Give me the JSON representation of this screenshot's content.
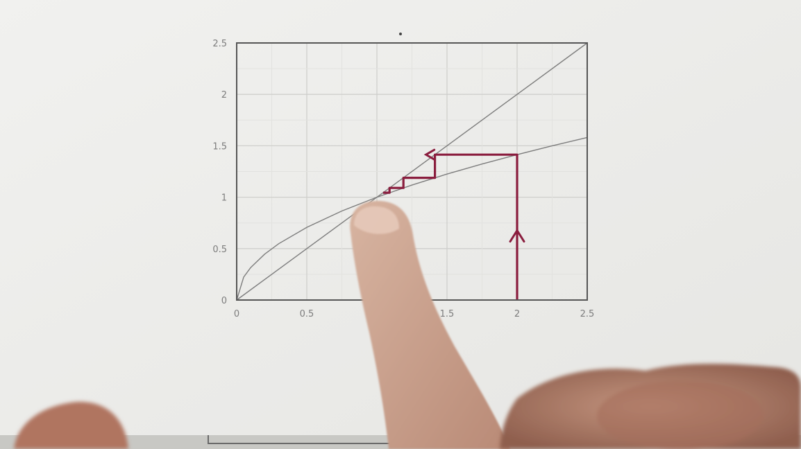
{
  "photo": {
    "subject": "hand-pointing",
    "paper_color": "#eeeeec",
    "ink_color": "#8a1d3e"
  },
  "chart_data": {
    "type": "line",
    "title": "",
    "xlabel": "",
    "ylabel": "",
    "xlim": [
      0,
      2.5
    ],
    "ylim": [
      0,
      2.5
    ],
    "grid": true,
    "x_ticks": [
      "0",
      "0.5",
      "1",
      "1.5",
      "2",
      "2.5"
    ],
    "y_ticks": [
      "0",
      "0.5",
      "1",
      "1.5",
      "2",
      "2.5"
    ],
    "series": [
      {
        "x": [
          0,
          2.5
        ],
        "y": [
          0,
          2.5
        ]
      },
      {
        "x": [
          0,
          0.05,
          0.1,
          0.2,
          0.3,
          0.5,
          0.75,
          1,
          1.25,
          1.5,
          1.75,
          2,
          2.25,
          2.5
        ],
        "y": [
          0,
          0.224,
          0.316,
          0.447,
          0.548,
          0.707,
          0.866,
          1,
          1.118,
          1.225,
          1.323,
          1.414,
          1.5,
          1.581
        ]
      }
    ],
    "annotations": {
      "cobweb_x": [
        2,
        2,
        1.414,
        1.414,
        1.189,
        1.189,
        1.09,
        1.09,
        1.044
      ],
      "cobweb_y": [
        0,
        1.414,
        1.414,
        1.189,
        1.189,
        1.09,
        1.09,
        1.044,
        1.044
      ]
    }
  }
}
